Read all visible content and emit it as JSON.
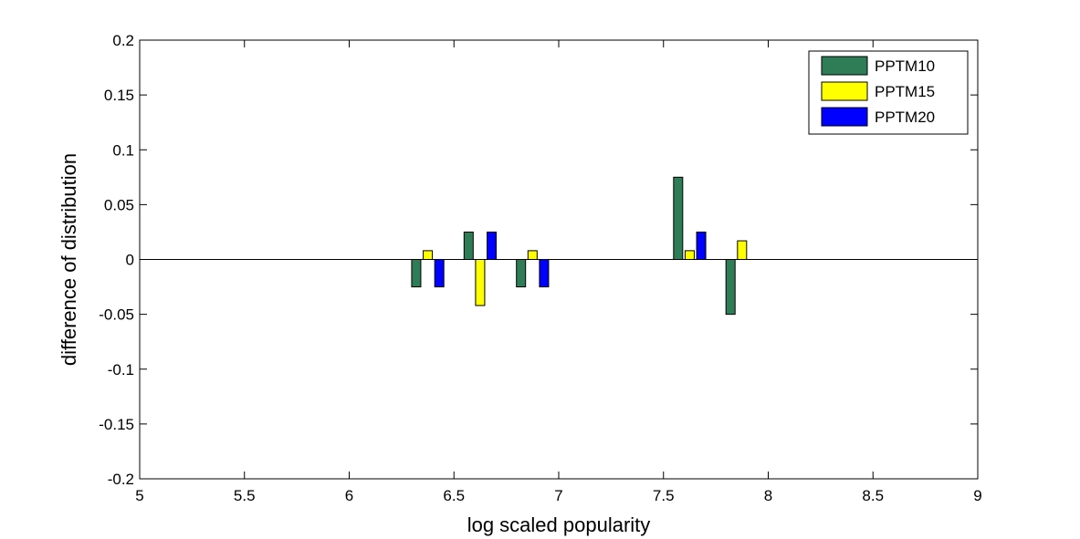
{
  "chart_data": {
    "type": "bar",
    "xlabel": "log scaled popularity",
    "ylabel": "difference of distribution",
    "xlim": [
      5,
      9
    ],
    "ylim": [
      -0.2,
      0.2
    ],
    "xticks": [
      "5",
      "5.5",
      "6",
      "6.5",
      "7",
      "7.5",
      "8",
      "8.5",
      "9"
    ],
    "yticks": [
      "0.2",
      "0.15",
      "0.1",
      "0.05",
      "0",
      "-0.05",
      "-0.1",
      "-0.15",
      "-0.2"
    ],
    "grid": false,
    "legend_position": "top-right",
    "series": [
      {
        "name": "PPTM10",
        "color": "#2e7d57",
        "x": [
          6.32,
          6.57,
          6.82,
          7.57,
          7.82
        ],
        "values": [
          -0.025,
          0.025,
          -0.025,
          0.075,
          -0.05
        ]
      },
      {
        "name": "PPTM15",
        "color": "#ffff00",
        "x": [
          6.375,
          6.625,
          6.875,
          7.625,
          7.875
        ],
        "values": [
          0.008,
          -0.042,
          0.008,
          0.008,
          0.017
        ]
      },
      {
        "name": "PPTM20",
        "color": "#0000ff",
        "x": [
          6.43,
          6.68,
          6.93,
          7.68
        ],
        "values": [
          -0.025,
          0.025,
          -0.025,
          0.025
        ]
      }
    ]
  }
}
